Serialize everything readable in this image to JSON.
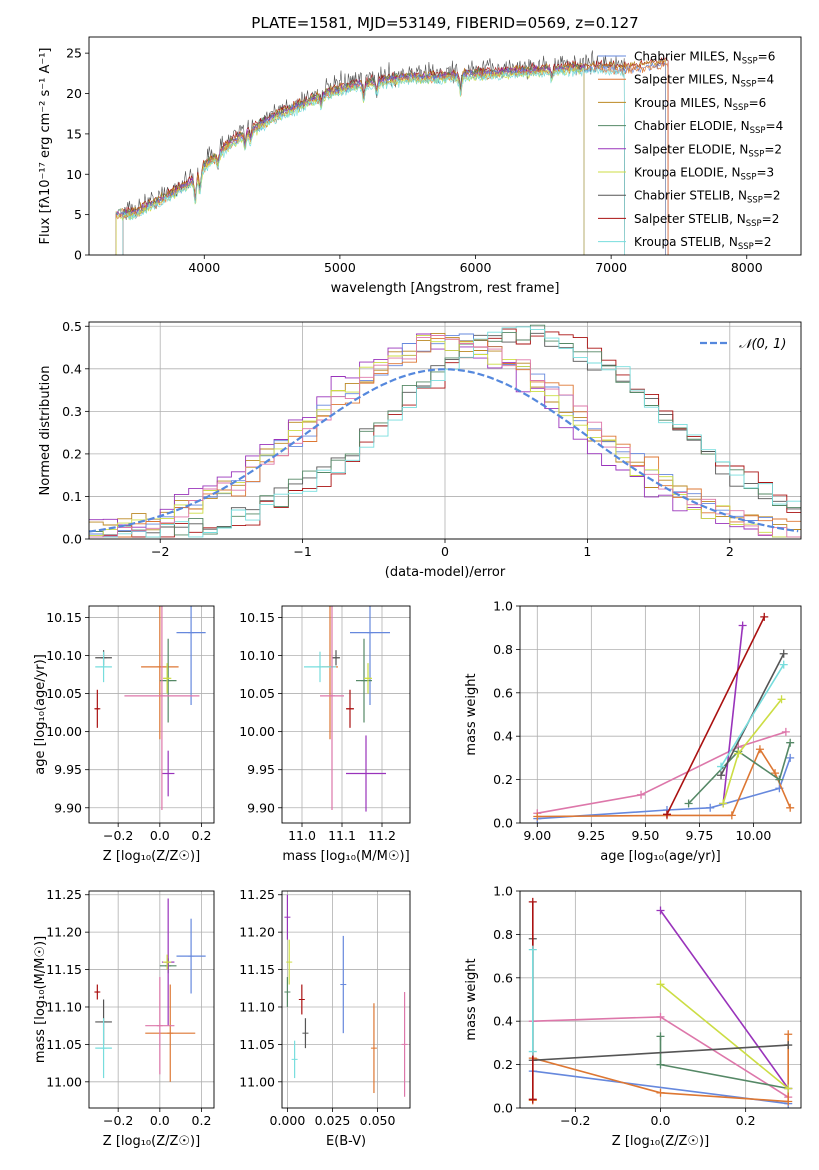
{
  "title": "PLATE=1581, MJD=53149, FIBERID=0569, z=0.127",
  "colors": {
    "Chabrier MILES": "#6688dd",
    "Salpeter MILES": "#dd7733",
    "Kroupa MILES": "#bb8822",
    "Chabrier ELODIE": "#558866",
    "Salpeter ELODIE": "#9933bb",
    "Kroupa ELODIE": "#ccdd44",
    "Chabrier STELIB": "#555555",
    "Salpeter STELIB": "#aa1111",
    "Kroupa STELIB": "#77dddd",
    "extra_pink": "#dd77aa",
    "normal_curve": "#5588dd"
  },
  "chart_data": [
    {
      "id": "spectrum",
      "type": "line",
      "xlabel": "wavelength [Angstrom, rest frame]",
      "ylabel": "Flux [fλ10⁻¹⁷ erg cm⁻² s⁻¹ A⁻¹]",
      "xlim": [
        3150,
        8400
      ],
      "ylim": [
        0,
        27
      ],
      "xticks": [
        4000,
        5000,
        6000,
        7000,
        8000
      ],
      "yticks": [
        0,
        5,
        10,
        15,
        20,
        25
      ],
      "legend_position": "top-right",
      "legend": [
        {
          "name": "Chabrier MILES",
          "nssp": "6"
        },
        {
          "name": "Salpeter MILES",
          "nssp": "4"
        },
        {
          "name": "Kroupa MILES",
          "nssp": "6"
        },
        {
          "name": "Chabrier ELODIE",
          "nssp": "4"
        },
        {
          "name": "Salpeter ELODIE",
          "nssp": "2"
        },
        {
          "name": "Kroupa ELODIE",
          "nssp": "3"
        },
        {
          "name": "Chabrier STELIB",
          "nssp": "2"
        },
        {
          "name": "Salpeter STELIB",
          "nssp": "2"
        },
        {
          "name": "Kroupa STELIB",
          "nssp": "2"
        }
      ],
      "continuum": {
        "x": [
          3350,
          3500,
          3700,
          3900,
          4000,
          4200,
          4300,
          4500,
          4700,
          4900,
          5100,
          5300,
          5500,
          5700,
          5900,
          6100,
          6300,
          6500,
          6700,
          6900,
          7100,
          7300,
          7500
        ],
        "y": [
          5.5,
          5.8,
          7.5,
          9.5,
          11.5,
          14.5,
          15.5,
          17.5,
          19,
          20.5,
          21.5,
          22,
          22.5,
          22.5,
          22.8,
          23,
          23.2,
          23.4,
          23.6,
          23.7,
          23.5,
          24,
          24.5
        ]
      }
    },
    {
      "id": "residuals",
      "type": "line",
      "xlabel": "(data-model)/error",
      "ylabel": "Normed distribution",
      "xlim": [
        -2.5,
        2.5
      ],
      "ylim": [
        0,
        0.51
      ],
      "xticks": [
        -2,
        -1,
        0,
        1,
        2
      ],
      "yticks": [
        0.0,
        0.1,
        0.2,
        0.3,
        0.4,
        0.5
      ],
      "grid": true,
      "legend_position": "top-right",
      "legend": [
        {
          "name": "𝒩(0, 1)"
        }
      ],
      "normal": {
        "mean": 0,
        "sigma": 1
      }
    },
    {
      "id": "age_vs_z",
      "type": "scatter",
      "xlabel": "Z [log₁₀(Z/Z☉)]",
      "ylabel": "age  [log₁₀(age/yr)]",
      "xlim": [
        -0.34,
        0.26
      ],
      "ylim": [
        9.88,
        10.165
      ],
      "xticks": [
        -0.2,
        0.0,
        0.2
      ],
      "yticks": [
        9.9,
        9.95,
        10.0,
        10.05,
        10.1,
        10.15
      ],
      "grid": true,
      "points": [
        {
          "c": "Chabrier MILES",
          "x": 0.15,
          "y": 10.13,
          "ex": 0.07,
          "ey": 0.095
        },
        {
          "c": "Salpeter MILES",
          "x": 0.0,
          "y": 10.085,
          "ex": 0.09,
          "ey": 0.095
        },
        {
          "c": "Chabrier ELODIE",
          "x": 0.04,
          "y": 10.067,
          "ex": 0.04,
          "ey": 0.055
        },
        {
          "c": "Salpeter ELODIE",
          "x": 0.04,
          "y": 9.945,
          "ex": 0.03,
          "ey": 0.03
        },
        {
          "c": "Kroupa ELODIE",
          "x": 0.035,
          "y": 10.07,
          "ex": 0.02,
          "ey": 0.02
        },
        {
          "c": "Chabrier STELIB",
          "x": -0.27,
          "y": 10.097,
          "ex": 0.04,
          "ey": 0.01
        },
        {
          "c": "Salpeter STELIB",
          "x": -0.3,
          "y": 10.03,
          "ex": 0.01,
          "ey": 0.025
        },
        {
          "c": "Kroupa STELIB",
          "x": -0.27,
          "y": 10.085,
          "ex": 0.04,
          "ey": 0.02
        },
        {
          "c": "extra_pink",
          "x": 0.01,
          "y": 10.047,
          "ex": 0.18,
          "ey": 0.15
        }
      ]
    },
    {
      "id": "age_vs_mass",
      "type": "scatter",
      "xlabel": "mass [log₁₀(M/M☉)]",
      "ylabel": "",
      "xlim": [
        10.95,
        11.27
      ],
      "ylim": [
        9.88,
        10.165
      ],
      "xticks": [
        11.0,
        11.1,
        11.2
      ],
      "yticks": [
        9.9,
        9.95,
        10.0,
        10.05,
        10.1,
        10.15
      ],
      "grid": true,
      "points": [
        {
          "c": "Chabrier MILES",
          "x": 11.17,
          "y": 10.13,
          "ex": 0.05,
          "ey": 0.095
        },
        {
          "c": "Salpeter MILES",
          "x": 11.07,
          "y": 10.085,
          "ex": 0.02,
          "ey": 0.095
        },
        {
          "c": "Chabrier ELODIE",
          "x": 11.155,
          "y": 10.067,
          "ex": 0.02,
          "ey": 0.055
        },
        {
          "c": "Salpeter ELODIE",
          "x": 11.16,
          "y": 9.945,
          "ex": 0.05,
          "ey": 0.05
        },
        {
          "c": "Kroupa ELODIE",
          "x": 11.165,
          "y": 10.07,
          "ex": 0.01,
          "ey": 0.02
        },
        {
          "c": "Chabrier STELIB",
          "x": 11.085,
          "y": 10.097,
          "ex": 0.01,
          "ey": 0.01
        },
        {
          "c": "Salpeter STELIB",
          "x": 11.12,
          "y": 10.03,
          "ex": 0.01,
          "ey": 0.025
        },
        {
          "c": "Kroupa STELIB",
          "x": 11.045,
          "y": 10.085,
          "ex": 0.04,
          "ey": 0.02
        },
        {
          "c": "extra_pink",
          "x": 11.075,
          "y": 10.047,
          "ex": 0.03,
          "ey": 0.15
        }
      ]
    },
    {
      "id": "weight_vs_age",
      "type": "line",
      "xlabel": "age  [log₁₀(age/yr)]",
      "ylabel": "mass weight",
      "xlim": [
        8.92,
        10.22
      ],
      "ylim": [
        0,
        1.0
      ],
      "xticks": [
        9.0,
        9.25,
        9.5,
        9.75,
        10.0
      ],
      "yticks": [
        0.0,
        0.2,
        0.4,
        0.6,
        0.8,
        1.0
      ],
      "grid": true,
      "series": [
        {
          "c": "extra_pink",
          "x": [
            9.0,
            9.48,
            9.93,
            10.15
          ],
          "y": [
            0.045,
            0.13,
            0.35,
            0.42
          ]
        },
        {
          "c": "Chabrier MILES",
          "x": [
            9.0,
            9.6,
            9.8,
            10.12,
            10.17
          ],
          "y": [
            0.02,
            0.06,
            0.07,
            0.16,
            0.3
          ]
        },
        {
          "c": "Salpeter MILES",
          "x": [
            9.0,
            9.6,
            9.9,
            10.03,
            10.1,
            10.17
          ],
          "y": [
            0.03,
            0.035,
            0.035,
            0.34,
            0.23,
            0.07
          ]
        },
        {
          "c": "Chabrier ELODIE",
          "x": [
            9.7,
            9.93,
            10.12,
            10.17
          ],
          "y": [
            0.09,
            0.33,
            0.2,
            0.37
          ]
        },
        {
          "c": "Salpeter ELODIE",
          "x": [
            9.86,
            9.95
          ],
          "y": [
            0.09,
            0.91
          ]
        },
        {
          "c": "Kroupa ELODIE",
          "x": [
            9.86,
            9.93,
            10.13
          ],
          "y": [
            0.09,
            0.32,
            0.57
          ]
        },
        {
          "c": "Chabrier STELIB",
          "x": [
            9.85,
            10.14
          ],
          "y": [
            0.22,
            0.78
          ]
        },
        {
          "c": "Salpeter STELIB",
          "x": [
            9.6,
            10.05
          ],
          "y": [
            0.04,
            0.95
          ]
        },
        {
          "c": "Kroupa STELIB",
          "x": [
            9.85,
            10.14
          ],
          "y": [
            0.26,
            0.73
          ]
        }
      ]
    },
    {
      "id": "mass_vs_z",
      "type": "scatter",
      "xlabel": "Z [log₁₀(Z/Z☉)]",
      "ylabel": "mass [log₁₀(M/M☉)]",
      "xlim": [
        -0.34,
        0.26
      ],
      "ylim": [
        10.965,
        11.255
      ],
      "xticks": [
        -0.2,
        0.0,
        0.2
      ],
      "yticks": [
        11.0,
        11.05,
        11.1,
        11.15,
        11.2,
        11.25
      ],
      "grid": true,
      "points": [
        {
          "c": "Chabrier MILES",
          "x": 0.15,
          "y": 11.168,
          "ex": 0.07,
          "ey": 0.05
        },
        {
          "c": "Salpeter MILES",
          "x": 0.05,
          "y": 11.065,
          "ex": 0.12,
          "ey": 0.065
        },
        {
          "c": "Chabrier ELODIE",
          "x": 0.04,
          "y": 11.155,
          "ex": 0.04,
          "ey": 0.01
        },
        {
          "c": "Salpeter ELODIE",
          "x": 0.04,
          "y": 11.16,
          "ex": 0.03,
          "ey": 0.085
        },
        {
          "c": "Kroupa ELODIE",
          "x": 0.035,
          "y": 11.16,
          "ex": 0.02,
          "ey": 0.01
        },
        {
          "c": "Chabrier STELIB",
          "x": -0.27,
          "y": 11.08,
          "ex": 0.04,
          "ey": 0.03
        },
        {
          "c": "Salpeter STELIB",
          "x": -0.3,
          "y": 11.12,
          "ex": 0.01,
          "ey": 0.01
        },
        {
          "c": "Kroupa STELIB",
          "x": -0.27,
          "y": 11.045,
          "ex": 0.04,
          "ey": 0.04
        },
        {
          "c": "extra_pink",
          "x": 0.0,
          "y": 11.075,
          "ex": 0.07,
          "ey": 0.065
        }
      ]
    },
    {
      "id": "mass_vs_ebv",
      "type": "scatter",
      "xlabel": "E(B-V)",
      "ylabel": "",
      "xlim": [
        -0.003,
        0.068
      ],
      "ylim": [
        10.965,
        11.255
      ],
      "xticks": [
        0.0,
        0.025,
        0.05
      ],
      "xticklabels": [
        "0.000",
        "0.025",
        "0.050"
      ],
      "yticks": [
        11.0,
        11.05,
        11.1,
        11.15,
        11.2,
        11.25
      ],
      "grid": true,
      "points": [
        {
          "c": "Chabrier MILES",
          "x": 0.031,
          "y": 11.13,
          "ex": 0,
          "ey": 0.065
        },
        {
          "c": "Salpeter MILES",
          "x": 0.048,
          "y": 11.045,
          "ex": 0,
          "ey": 0.06
        },
        {
          "c": "Salpeter ELODIE",
          "x": 0.0,
          "y": 11.22,
          "ex": 0,
          "ey": 0.03
        },
        {
          "c": "Kroupa ELODIE",
          "x": 0.001,
          "y": 11.16,
          "ex": 0,
          "ey": 0.03
        },
        {
          "c": "Chabrier ELODIE",
          "x": 0.0,
          "y": 11.12,
          "ex": 0,
          "ey": 0.02
        },
        {
          "c": "Chabrier STELIB",
          "x": 0.01,
          "y": 11.065,
          "ex": 0,
          "ey": 0.02
        },
        {
          "c": "Salpeter STELIB",
          "x": 0.008,
          "y": 11.11,
          "ex": 0,
          "ey": 0.02
        },
        {
          "c": "Kroupa STELIB",
          "x": 0.004,
          "y": 11.03,
          "ex": 0,
          "ey": 0.025
        },
        {
          "c": "extra_pink",
          "x": 0.065,
          "y": 11.05,
          "ex": 0,
          "ey": 0.07
        }
      ]
    },
    {
      "id": "weight_vs_z",
      "type": "line",
      "xlabel": "Z [log₁₀(Z/Z☉)]",
      "ylabel": "mass weight",
      "xlim": [
        -0.33,
        0.33
      ],
      "ylim": [
        0,
        1.0
      ],
      "xticks": [
        -0.2,
        0.0,
        0.2
      ],
      "yticks": [
        0.0,
        0.2,
        0.4,
        0.6,
        0.8,
        1.0
      ],
      "grid": true,
      "series": [
        {
          "c": "extra_pink",
          "x": [
            -0.3,
            0.0,
            0.3
          ],
          "y": [
            0.4,
            0.42,
            0.05
          ]
        },
        {
          "c": "Chabrier MILES",
          "x": [
            -0.3,
            0.3
          ],
          "y": [
            0.17,
            0.02
          ]
        },
        {
          "c": "Salpeter MILES",
          "x": [
            -0.3,
            -0.3,
            0.0,
            0.3,
            0.3
          ],
          "y": [
            0.035,
            0.23,
            0.07,
            0.03,
            0.34
          ]
        },
        {
          "c": "Chabrier ELODIE",
          "x": [
            0.0,
            0.0,
            0.3
          ],
          "y": [
            0.33,
            0.2,
            0.09
          ]
        },
        {
          "c": "Salpeter ELODIE",
          "x": [
            0.0,
            0.3
          ],
          "y": [
            0.91,
            0.09
          ]
        },
        {
          "c": "Kroupa ELODIE",
          "x": [
            0.0,
            0.3
          ],
          "y": [
            0.57,
            0.09
          ]
        },
        {
          "c": "Chabrier STELIB",
          "x": [
            -0.3,
            -0.3,
            0.3
          ],
          "y": [
            0.78,
            0.22,
            0.29
          ]
        },
        {
          "c": "Salpeter STELIB",
          "x": [
            -0.3,
            -0.3
          ],
          "y": [
            0.95,
            0.04
          ]
        },
        {
          "c": "Kroupa STELIB",
          "x": [
            -0.3,
            -0.3
          ],
          "y": [
            0.73,
            0.26
          ]
        }
      ]
    }
  ]
}
